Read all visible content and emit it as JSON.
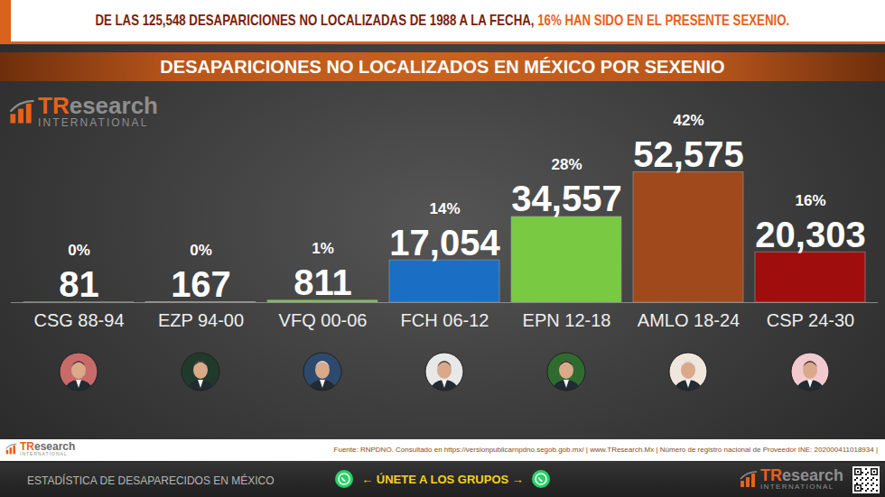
{
  "chart_data": {
    "type": "bar",
    "headline": [
      "DE LAS 125,548 DESAPARICIONES NO LOCALIZADAS DE 1988 A LA FECHA,",
      "16% HAN SIDO EN EL PRESENTE SEXENIO."
    ],
    "title": "DESAPARICIONES NO LOCALIZADOS EN MÉXICO POR SEXENIO",
    "categories": [
      "CSG 88-94",
      "EZP 94-00",
      "VFQ 00-06",
      "FCH 06-12",
      "EPN 12-18",
      "AMLO 18-24",
      "CSP 24-30"
    ],
    "values": [
      81,
      167,
      811,
      17054,
      34557,
      52575,
      20303
    ],
    "value_labels": [
      "81",
      "167",
      "811",
      "17,054",
      "34,557",
      "52,575",
      "20,303"
    ],
    "shares": [
      0,
      0,
      1,
      14,
      28,
      42,
      16
    ],
    "share_labels": [
      "0%",
      "0%",
      "1%",
      "14%",
      "28%",
      "42%",
      "16%"
    ],
    "colors": [
      "#7ac943",
      "#7ac943",
      "#7ac943",
      "#1a6fc4",
      "#7ac943",
      "#a0491c",
      "#a00d0d"
    ],
    "ylim": [
      0,
      80000
    ],
    "data_labels": true,
    "tick_labels": "x",
    "grid": false,
    "logo": [
      "TR",
      "esearch",
      "INTERNATIONAL"
    ],
    "source": "Fuente: RNPDNO. Consultado en https://versionpublicarnpdno.segob.gob.mx/ | www.TResearch.Mx | Número de registro nacional de Proveedor INE: 202000411018934 |",
    "footer": "ESTADÍSTICA DE DESAPARECIDOS EN MÉXICO",
    "call_to_action": "← ÚNETE A LOS GRUPOS →"
  }
}
